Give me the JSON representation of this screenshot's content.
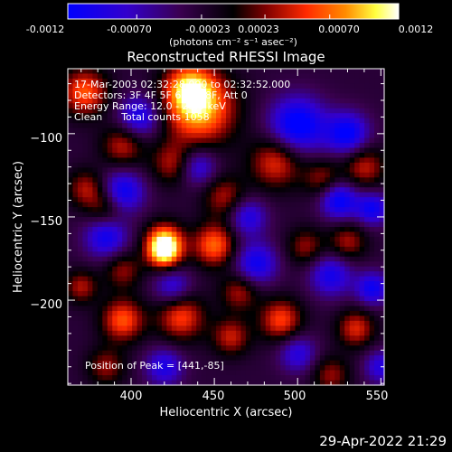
{
  "colorbar": {
    "tick_labels": [
      "-0.0012",
      "-0.00070",
      "-0.00023",
      "0.00023",
      "0.00070",
      "0.0012"
    ],
    "tick_values": [
      -0.0012,
      -0.0007,
      -0.00023,
      0.00023,
      0.0007,
      0.0012
    ],
    "range": [
      -0.0012,
      0.0012
    ],
    "units": "(photons cm⁻² s⁻¹ asec⁻²)"
  },
  "plot_title": "Reconstructed RHESSI Image",
  "info": {
    "time_range": "17-Mar-2003 02:32:28.000 to 02:32:52.000",
    "detectors": "Detectors: 3F 4F 5F 6F 7F 8F, Att 0",
    "energy": "Energy Range: 12.0 - 25.0 keV",
    "clean": "Clean      Total counts 1058",
    "peak": "Position of Peak = [441,-85]"
  },
  "footer_date": "29-Apr-2022 21:29",
  "colors": {
    "background": "#000000",
    "text": "#ffffff",
    "colormap_low": "#0000ff",
    "colormap_mid": "#000000",
    "colormap_high": "#ffffff"
  },
  "chart_data": {
    "type": "heatmap",
    "title": "Reconstructed RHESSI Image",
    "xlabel": "Heliocentric X (arcsec)",
    "ylabel": "Heliocentric Y (arcsec)",
    "xlim": [
      362,
      552
    ],
    "ylim": [
      -251,
      -61
    ],
    "x_ticks": [
      400,
      450,
      500,
      550
    ],
    "y_ticks": [
      -100,
      -150,
      -200
    ],
    "x_tick_labels": [
      "400",
      "450",
      "500",
      "550"
    ],
    "y_tick_labels": [
      "−100",
      "−150",
      "−200"
    ],
    "peak_position": [
      441,
      -85
    ],
    "peak_value": 0.0012,
    "colorbar_range": [
      -0.0012,
      0.0012
    ],
    "sources": [
      {
        "x": 441,
        "y": -85,
        "sigma": 15,
        "amp": 1.0
      },
      {
        "x": 435,
        "y": -72,
        "sigma": 10,
        "amp": 0.7
      },
      {
        "x": 372,
        "y": -75,
        "sigma": 10,
        "amp": 0.75
      },
      {
        "x": 395,
        "y": -107,
        "sigma": 9,
        "amp": 0.55
      },
      {
        "x": 425,
        "y": -118,
        "sigma": 9,
        "amp": 0.5
      },
      {
        "x": 487,
        "y": -117,
        "sigma": 11,
        "amp": 0.65
      },
      {
        "x": 540,
        "y": -120,
        "sigma": 9,
        "amp": 0.55
      },
      {
        "x": 373,
        "y": -133,
        "sigma": 8,
        "amp": 0.5
      },
      {
        "x": 456,
        "y": -138,
        "sigma": 9,
        "amp": 0.5
      },
      {
        "x": 515,
        "y": -127,
        "sigma": 8,
        "amp": 0.45
      },
      {
        "x": 385,
        "y": -145,
        "sigma": 8,
        "amp": 0.45
      },
      {
        "x": 420,
        "y": -165,
        "sigma": 8,
        "amp": 0.95
      },
      {
        "x": 420,
        "y": -172,
        "sigma": 7,
        "amp": 0.8
      },
      {
        "x": 450,
        "y": -167,
        "sigma": 9,
        "amp": 0.8
      },
      {
        "x": 505,
        "y": -168,
        "sigma": 8,
        "amp": 0.45
      },
      {
        "x": 530,
        "y": -165,
        "sigma": 8,
        "amp": 0.5
      },
      {
        "x": 395,
        "y": -182,
        "sigma": 8,
        "amp": 0.45
      },
      {
        "x": 370,
        "y": -192,
        "sigma": 7,
        "amp": 0.5
      },
      {
        "x": 465,
        "y": -195,
        "sigma": 8,
        "amp": 0.5
      },
      {
        "x": 395,
        "y": -212,
        "sigma": 9,
        "amp": 0.75
      },
      {
        "x": 430,
        "y": -210,
        "sigma": 10,
        "amp": 0.7
      },
      {
        "x": 490,
        "y": -212,
        "sigma": 9,
        "amp": 0.7
      },
      {
        "x": 535,
        "y": -217,
        "sigma": 8,
        "amp": 0.6
      },
      {
        "x": 460,
        "y": -222,
        "sigma": 8,
        "amp": 0.55
      },
      {
        "x": 385,
        "y": -240,
        "sigma": 8,
        "amp": 0.45
      },
      {
        "x": 520,
        "y": -245,
        "sigma": 8,
        "amp": 0.45
      },
      {
        "x": 405,
        "y": -90,
        "sigma": 9,
        "amp": -0.7
      },
      {
        "x": 500,
        "y": -95,
        "sigma": 12,
        "amp": -0.9
      },
      {
        "x": 530,
        "y": -100,
        "sigma": 9,
        "amp": -0.8
      },
      {
        "x": 395,
        "y": -135,
        "sigma": 9,
        "amp": -0.75
      },
      {
        "x": 440,
        "y": -120,
        "sigma": 8,
        "amp": -0.6
      },
      {
        "x": 525,
        "y": -140,
        "sigma": 8,
        "amp": -0.8
      },
      {
        "x": 545,
        "y": -145,
        "sigma": 7,
        "amp": -0.7
      },
      {
        "x": 470,
        "y": -150,
        "sigma": 8,
        "amp": -0.6
      },
      {
        "x": 385,
        "y": -162,
        "sigma": 9,
        "amp": -0.7
      },
      {
        "x": 475,
        "y": -178,
        "sigma": 9,
        "amp": -0.7
      },
      {
        "x": 520,
        "y": -185,
        "sigma": 9,
        "amp": -0.65
      },
      {
        "x": 425,
        "y": -192,
        "sigma": 8,
        "amp": -0.55
      },
      {
        "x": 545,
        "y": -193,
        "sigma": 7,
        "amp": -0.7
      },
      {
        "x": 500,
        "y": -232,
        "sigma": 8,
        "amp": -0.55
      },
      {
        "x": 420,
        "y": -240,
        "sigma": 8,
        "amp": -0.6
      },
      {
        "x": 550,
        "y": -240,
        "sigma": 7,
        "amp": -0.55
      }
    ]
  }
}
